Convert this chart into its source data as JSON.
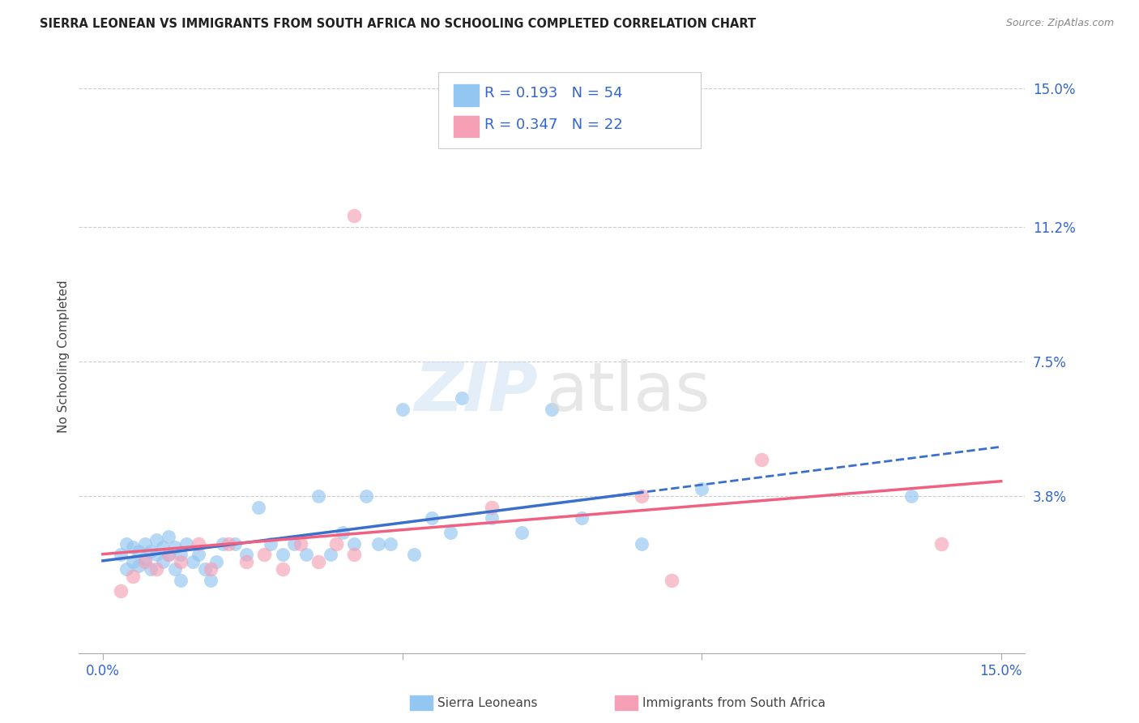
{
  "title": "SIERRA LEONEAN VS IMMIGRANTS FROM SOUTH AFRICA NO SCHOOLING COMPLETED CORRELATION CHART",
  "source": "Source: ZipAtlas.com",
  "ylabel": "No Schooling Completed",
  "yticks": [
    "15.0%",
    "11.2%",
    "7.5%",
    "3.8%"
  ],
  "ytick_vals": [
    0.15,
    0.112,
    0.075,
    0.038
  ],
  "xlim": [
    0.0,
    0.15
  ],
  "ylim": [
    -0.005,
    0.158
  ],
  "legend1_R": "0.193",
  "legend1_N": "54",
  "legend2_R": "0.347",
  "legend2_N": "22",
  "legend_label1": "Sierra Leoneans",
  "legend_label2": "Immigrants from South Africa",
  "color_blue": "#93C6F0",
  "color_pink": "#F5A0B5",
  "color_blue_line": "#3A6FCC",
  "color_pink_line": "#F06080",
  "sierra_x": [
    0.003,
    0.004,
    0.004,
    0.005,
    0.005,
    0.006,
    0.006,
    0.007,
    0.007,
    0.008,
    0.008,
    0.009,
    0.009,
    0.01,
    0.01,
    0.011,
    0.011,
    0.012,
    0.012,
    0.013,
    0.013,
    0.014,
    0.015,
    0.016,
    0.017,
    0.018,
    0.019,
    0.02,
    0.022,
    0.024,
    0.026,
    0.028,
    0.03,
    0.032,
    0.034,
    0.036,
    0.038,
    0.04,
    0.042,
    0.044,
    0.046,
    0.048,
    0.05,
    0.052,
    0.055,
    0.058,
    0.06,
    0.065,
    0.07,
    0.075,
    0.08,
    0.09,
    0.1,
    0.135
  ],
  "sierra_y": [
    0.022,
    0.018,
    0.025,
    0.02,
    0.024,
    0.019,
    0.023,
    0.021,
    0.025,
    0.018,
    0.023,
    0.022,
    0.026,
    0.02,
    0.024,
    0.022,
    0.027,
    0.018,
    0.024,
    0.015,
    0.022,
    0.025,
    0.02,
    0.022,
    0.018,
    0.015,
    0.02,
    0.025,
    0.025,
    0.022,
    0.035,
    0.025,
    0.022,
    0.025,
    0.022,
    0.038,
    0.022,
    0.028,
    0.025,
    0.038,
    0.025,
    0.025,
    0.062,
    0.022,
    0.032,
    0.028,
    0.065,
    0.032,
    0.028,
    0.062,
    0.032,
    0.025,
    0.04,
    0.038
  ],
  "sa_x": [
    0.003,
    0.005,
    0.007,
    0.009,
    0.011,
    0.013,
    0.016,
    0.018,
    0.021,
    0.024,
    0.027,
    0.03,
    0.033,
    0.036,
    0.039,
    0.042,
    0.042,
    0.065,
    0.09,
    0.095,
    0.11,
    0.14
  ],
  "sa_y": [
    0.012,
    0.016,
    0.02,
    0.018,
    0.022,
    0.02,
    0.025,
    0.018,
    0.025,
    0.02,
    0.022,
    0.018,
    0.025,
    0.02,
    0.025,
    0.022,
    0.115,
    0.035,
    0.038,
    0.015,
    0.048,
    0.025
  ]
}
